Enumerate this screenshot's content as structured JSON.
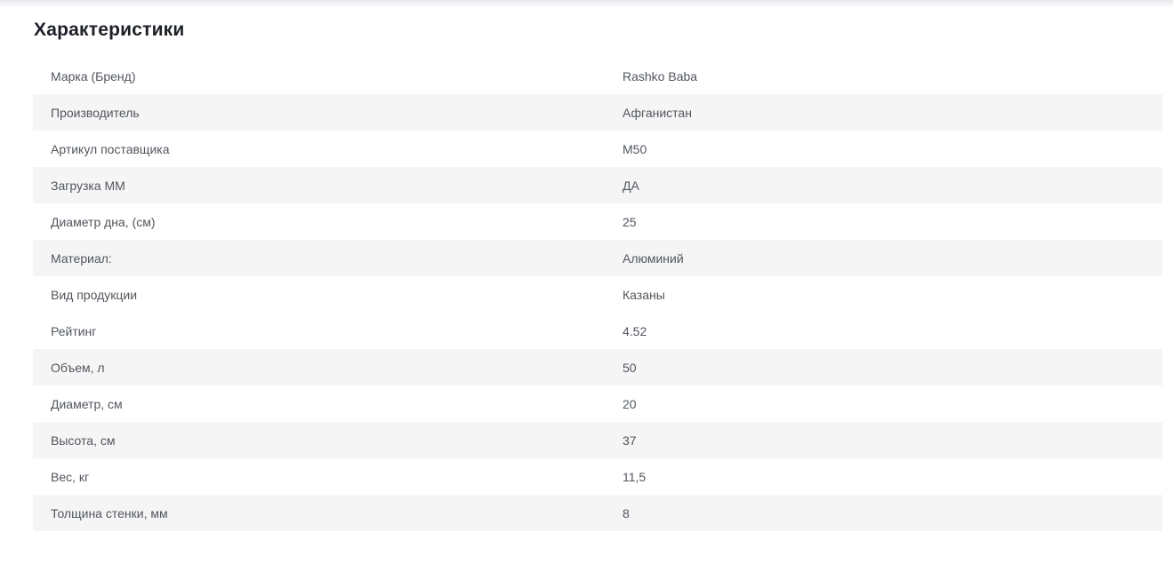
{
  "section": {
    "title": "Характеристики"
  },
  "specs": {
    "rows": [
      {
        "label": "Марка (Бренд)",
        "value": "Rashko Baba",
        "shaded": false
      },
      {
        "label": "Производитель",
        "value": "Афганистан",
        "shaded": true
      },
      {
        "label": "Артикул поставщика",
        "value": "M50",
        "shaded": false
      },
      {
        "label": "Загрузка ММ",
        "value": "ДА",
        "shaded": true
      },
      {
        "label": "Диаметр дна, (см)",
        "value": "25",
        "shaded": false
      },
      {
        "label": "Материал:",
        "value": "Алюминий",
        "shaded": true
      },
      {
        "label": "Вид продукции",
        "value": "Казаны",
        "shaded": false
      },
      {
        "label": "Рейтинг",
        "value": "4.52",
        "shaded": false
      },
      {
        "label": "Объем, л",
        "value": "50",
        "shaded": true
      },
      {
        "label": "Диаметр, см",
        "value": "20",
        "shaded": false
      },
      {
        "label": "Высота, см",
        "value": "37",
        "shaded": true
      },
      {
        "label": "Вес, кг",
        "value": "11,5",
        "shaded": false
      },
      {
        "label": "Толщина стенки, мм",
        "value": "8",
        "shaded": true
      }
    ]
  },
  "colors": {
    "shaded_row_bg": "#f5f5f6",
    "title_text": "#1d2027",
    "row_text": "#51565d",
    "top_shadow": "#e6e7eb"
  }
}
